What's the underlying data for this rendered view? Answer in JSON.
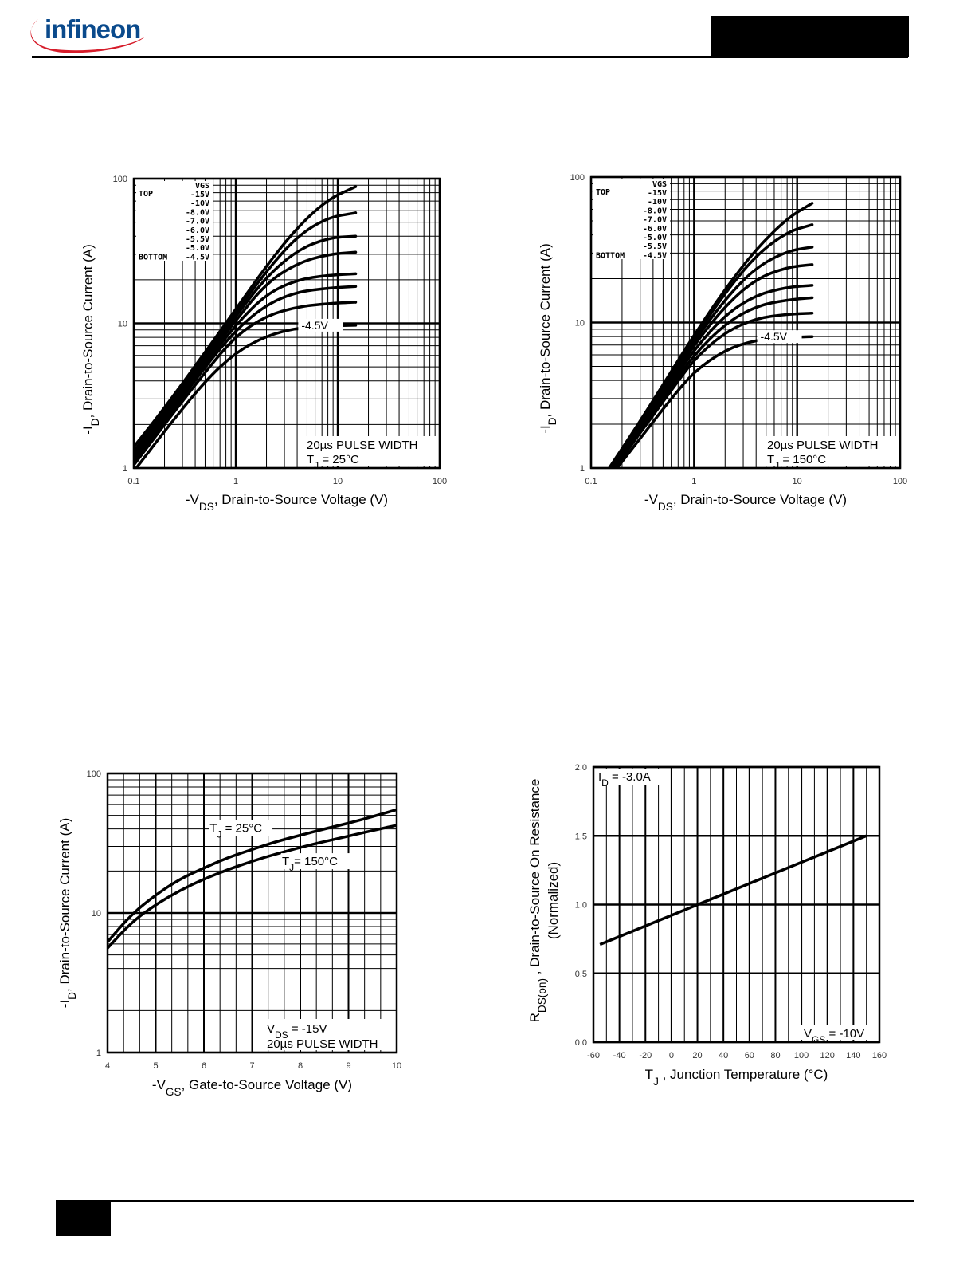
{
  "brand": {
    "name": "infineon"
  },
  "chart_data": [
    {
      "type": "line",
      "xscale": "log",
      "yscale": "log",
      "xlim": [
        0.1,
        100
      ],
      "ylim": [
        1,
        100
      ],
      "xticks": [
        "0.1",
        "1",
        "10",
        "100"
      ],
      "yticks": [
        "1",
        "10",
        "100"
      ],
      "xlabel": "-V",
      "xlabel_sub": "DS",
      "xlabel_rest": ", Drain-to-Source Voltage (V)",
      "ylabel": "-I",
      "ylabel_sub": "D",
      "ylabel_rest": ", Drain-to-Source Current (A)",
      "grid": true,
      "legend": {
        "top_label": "TOP",
        "bottom_label": "BOTTOM",
        "header": "VGS",
        "entries": [
          "-15V",
          "-10V",
          "-8.0V",
          "-7.0V",
          "-6.0V",
          "-5.5V",
          "-5.0V",
          "-4.5V"
        ]
      },
      "annotation": {
        "pulse": "20µs PULSE WIDTH",
        "tj_main": "T",
        "tj_sub": "J",
        "tj_rest": " = 25°C"
      },
      "curve_label": "-4.5V",
      "series": [
        {
          "name": "-15V",
          "x": [
            0.1,
            0.2,
            0.5,
            1,
            2,
            4,
            8,
            15
          ],
          "y": [
            1.4,
            2.6,
            6.3,
            12.5,
            25,
            46,
            72,
            88
          ]
        },
        {
          "name": "-10V",
          "x": [
            0.1,
            0.2,
            0.5,
            1,
            2,
            4,
            8,
            15
          ],
          "y": [
            1.3,
            2.5,
            6.0,
            11.8,
            23,
            40,
            54,
            58
          ]
        },
        {
          "name": "-8.0V",
          "x": [
            0.1,
            0.2,
            0.5,
            1,
            2,
            4,
            8,
            15
          ],
          "y": [
            1.25,
            2.4,
            5.8,
            11.2,
            21,
            32,
            39,
            40
          ]
        },
        {
          "name": "-7.0V",
          "x": [
            0.1,
            0.2,
            0.5,
            1,
            2,
            4,
            8,
            15
          ],
          "y": [
            1.2,
            2.3,
            5.5,
            10.5,
            19,
            26,
            30,
            31
          ]
        },
        {
          "name": "-6.0V",
          "x": [
            0.1,
            0.2,
            0.5,
            1,
            2,
            4,
            8,
            15
          ],
          "y": [
            1.15,
            2.2,
            5.2,
            9.8,
            16,
            20,
            21.5,
            22
          ]
        },
        {
          "name": "-5.5V",
          "x": [
            0.1,
            0.2,
            0.5,
            1,
            2,
            4,
            8,
            15
          ],
          "y": [
            1.1,
            2.1,
            5.0,
            9.0,
            13.5,
            16.5,
            17.5,
            18
          ]
        },
        {
          "name": "-5.0V",
          "x": [
            0.1,
            0.2,
            0.5,
            1,
            2,
            4,
            8,
            15
          ],
          "y": [
            1.05,
            2.0,
            4.6,
            8.2,
            11.3,
            13,
            13.7,
            14
          ]
        },
        {
          "name": "-4.5V",
          "x": [
            0.1,
            0.2,
            0.5,
            1,
            2,
            4,
            8,
            15
          ],
          "y": [
            0.95,
            1.8,
            4.0,
            6.3,
            8.2,
            9.3,
            9.6,
            9.7
          ]
        }
      ]
    },
    {
      "type": "line",
      "xscale": "log",
      "yscale": "log",
      "xlim": [
        0.1,
        100
      ],
      "ylim": [
        1,
        100
      ],
      "xticks": [
        "0.1",
        "1",
        "10",
        "100"
      ],
      "yticks": [
        "1",
        "10",
        "100"
      ],
      "xlabel": "-V",
      "xlabel_sub": "DS",
      "xlabel_rest": ", Drain-to-Source Voltage (V)",
      "ylabel": "-I",
      "ylabel_sub": "D",
      "ylabel_rest": ", Drain-to-Source Current (A)",
      "grid": true,
      "legend": {
        "top_label": "TOP",
        "bottom_label": "BOTTOM",
        "header": "VGS",
        "entries": [
          "-15V",
          "-10V",
          "-8.0V",
          "-7.0V",
          "-6.0V",
          "-5.0V",
          "-5.5V",
          "-4.5V"
        ]
      },
      "annotation": {
        "pulse": "20µs PULSE WIDTH",
        "tj_main": "T",
        "tj_sub": "J",
        "tj_rest": " = 150°C"
      },
      "curve_label": "-4.5V",
      "series": [
        {
          "name": "-15V",
          "x": [
            0.15,
            0.3,
            0.6,
            1,
            2,
            4,
            8,
            14
          ],
          "y": [
            1.0,
            2.1,
            4.6,
            8.2,
            17,
            32,
            52,
            66
          ]
        },
        {
          "name": "-10V",
          "x": [
            0.15,
            0.3,
            0.6,
            1,
            2,
            4,
            8,
            14
          ],
          "y": [
            0.98,
            2.0,
            4.4,
            7.8,
            16,
            29,
            42,
            47
          ]
        },
        {
          "name": "-8.0V",
          "x": [
            0.15,
            0.3,
            0.6,
            1,
            2,
            4,
            8,
            14
          ],
          "y": [
            0.96,
            1.95,
            4.2,
            7.4,
            14.5,
            24,
            31,
            33
          ]
        },
        {
          "name": "-7.0V",
          "x": [
            0.15,
            0.3,
            0.6,
            1,
            2,
            4,
            8,
            14
          ],
          "y": [
            0.94,
            1.9,
            4.0,
            7.0,
            13,
            20,
            24,
            25
          ]
        },
        {
          "name": "-6.0V",
          "x": [
            0.15,
            0.3,
            0.6,
            1,
            2,
            4,
            8,
            14
          ],
          "y": [
            0.92,
            1.85,
            3.8,
            6.5,
            11.3,
            15.5,
            17.5,
            18
          ]
        },
        {
          "name": "-5.5V",
          "x": [
            0.15,
            0.3,
            0.6,
            1,
            2,
            4,
            8,
            14
          ],
          "y": [
            0.9,
            1.8,
            3.6,
            6.0,
            9.8,
            13,
            14.3,
            14.8
          ]
        },
        {
          "name": "-5.0V",
          "x": [
            0.15,
            0.3,
            0.6,
            1,
            2,
            4,
            8,
            14
          ],
          "y": [
            0.88,
            1.75,
            3.4,
            5.6,
            8.6,
            10.7,
            11.4,
            11.6
          ]
        },
        {
          "name": "-4.5V",
          "x": [
            0.15,
            0.3,
            0.6,
            1,
            2,
            4,
            8,
            14
          ],
          "y": [
            0.85,
            1.6,
            3.0,
            4.6,
            6.5,
            7.6,
            7.9,
            8.0
          ]
        }
      ]
    },
    {
      "type": "line",
      "xscale": "linear",
      "yscale": "log",
      "xlim": [
        4,
        10
      ],
      "ylim": [
        1,
        100
      ],
      "xticks": [
        "4",
        "5",
        "6",
        "7",
        "8",
        "9",
        "10"
      ],
      "yticks": [
        "1",
        "10",
        "100"
      ],
      "xlabel": "-V",
      "xlabel_sub": "GS",
      "xlabel_rest": ", Gate-to-Source Voltage (V)",
      "ylabel": "-I",
      "ylabel_sub": "D",
      "ylabel_rest": ", Drain-to-Source Current (A)",
      "grid": true,
      "annotation": {
        "vds_main": "V",
        "vds_sub": "DS",
        "vds_rest": " = -15V",
        "pulse": "20µs PULSE WIDTH"
      },
      "series": [
        {
          "label_main": "T",
          "label_sub": "J",
          "label_rest": " = 25°C",
          "x": [
            4,
            4.5,
            5,
            5.5,
            6,
            6.5,
            7,
            7.5,
            8,
            8.5,
            9,
            9.5,
            10
          ],
          "y": [
            6.2,
            9.8,
            13.5,
            17.5,
            21,
            25,
            28.5,
            32.5,
            36,
            40,
            44,
            49,
            55
          ]
        },
        {
          "label_main": "T",
          "label_sub": "J",
          "label_rest": "= 150°C",
          "x": [
            4,
            4.5,
            5,
            5.5,
            6,
            6.5,
            7,
            7.5,
            8,
            8.5,
            9,
            9.5,
            10
          ],
          "y": [
            5.6,
            8.6,
            11.5,
            14.5,
            17.5,
            20.5,
            23.5,
            26.5,
            29.5,
            32.5,
            35.5,
            39,
            42.5
          ]
        }
      ]
    },
    {
      "type": "line",
      "xscale": "linear",
      "yscale": "linear",
      "xlim": [
        -60,
        160
      ],
      "ylim": [
        0.0,
        2.0
      ],
      "xticks": [
        "-60",
        "-40",
        "-20",
        "0",
        "20",
        "40",
        "60",
        "80",
        "100",
        "120",
        "140",
        "160"
      ],
      "yticks": [
        "0.0",
        "0.5",
        "1.0",
        "1.5",
        "2.0"
      ],
      "xlabel": "T",
      "xlabel_sub": "J",
      "xlabel_rest": " , Junction Temperature (°C)",
      "ylabel": "R",
      "ylabel_sub": "DS(on)",
      "ylabel_rest": " ,   Drain-to-Source On Resistance",
      "ylabel2": "(Normalized)",
      "grid": true,
      "annotation": {
        "id_main": "I",
        "id_sub": "D",
        "id_rest": " = -3.0A",
        "vgs_main": "V",
        "vgs_sub": "GS",
        "vgs_rest": " = -10V"
      },
      "series": [
        {
          "x": [
            -55,
            150
          ],
          "y": [
            0.71,
            1.5
          ]
        }
      ]
    }
  ]
}
